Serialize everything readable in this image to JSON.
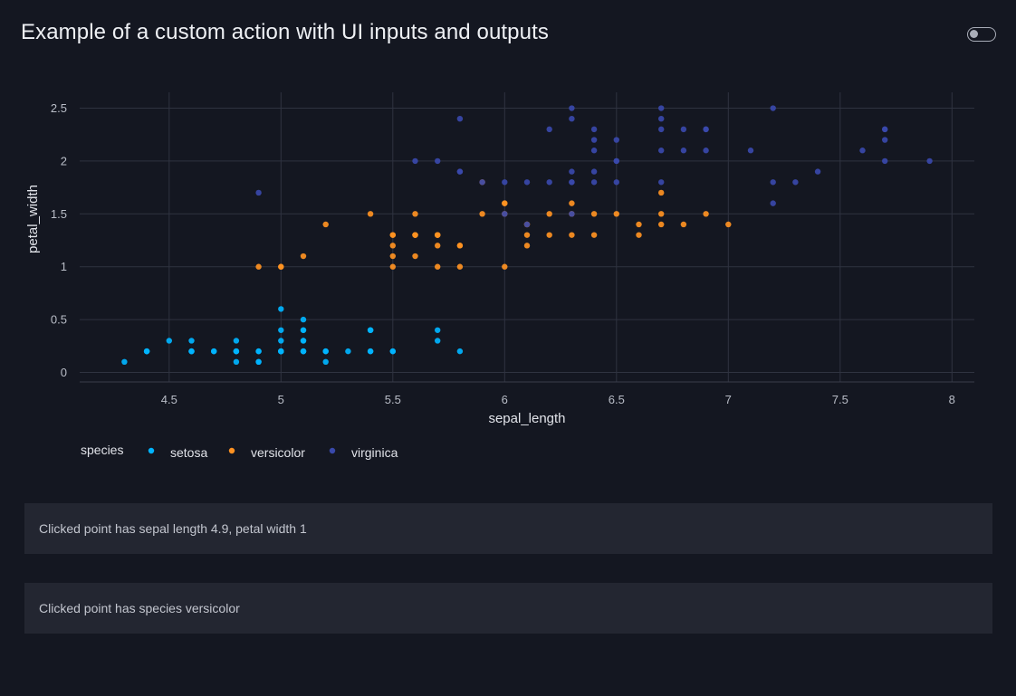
{
  "header": {
    "title": "Example of a custom action with UI inputs and outputs"
  },
  "colors": {
    "setosa": "#00b4ff",
    "versicolor": "#ff9222",
    "virginica": "#3949ab"
  },
  "outputs": [
    {
      "text": "Clicked point has sepal length 4.9, petal width 1"
    },
    {
      "text": "Clicked point has species versicolor"
    }
  ],
  "chart_data": {
    "type": "scatter",
    "xlabel": "sepal_length",
    "ylabel": "petal_width",
    "xlim": [
      4.1,
      8.1
    ],
    "ylim": [
      -0.09,
      2.65
    ],
    "x_ticks": [
      4.5,
      5,
      5.5,
      6,
      6.5,
      7,
      7.5,
      8
    ],
    "y_ticks": [
      0,
      0.5,
      1,
      1.5,
      2,
      2.5
    ],
    "x_tick_labels": [
      "4.5",
      "5",
      "5.5",
      "6",
      "6.5",
      "7",
      "7.5",
      "8"
    ],
    "y_tick_labels": [
      "0",
      "0.5",
      "1",
      "1.5",
      "2",
      "2.5"
    ],
    "grid": true,
    "legend": {
      "title": "species",
      "position": "bottom-left",
      "orientation": "horizontal"
    },
    "series": [
      {
        "name": "setosa",
        "points": [
          [
            5.1,
            0.2
          ],
          [
            4.9,
            0.2
          ],
          [
            4.7,
            0.2
          ],
          [
            4.6,
            0.2
          ],
          [
            5.0,
            0.2
          ],
          [
            5.4,
            0.4
          ],
          [
            4.6,
            0.3
          ],
          [
            5.0,
            0.2
          ],
          [
            4.4,
            0.2
          ],
          [
            4.9,
            0.1
          ],
          [
            5.4,
            0.2
          ],
          [
            4.8,
            0.2
          ],
          [
            4.8,
            0.1
          ],
          [
            4.3,
            0.1
          ],
          [
            5.8,
            0.2
          ],
          [
            5.7,
            0.4
          ],
          [
            5.4,
            0.4
          ],
          [
            5.1,
            0.3
          ],
          [
            5.7,
            0.3
          ],
          [
            5.1,
            0.3
          ],
          [
            5.4,
            0.2
          ],
          [
            5.1,
            0.4
          ],
          [
            4.6,
            0.2
          ],
          [
            5.1,
            0.5
          ],
          [
            4.8,
            0.2
          ],
          [
            5.0,
            0.2
          ],
          [
            5.0,
            0.4
          ],
          [
            5.2,
            0.2
          ],
          [
            5.2,
            0.2
          ],
          [
            4.7,
            0.2
          ],
          [
            4.8,
            0.2
          ],
          [
            5.4,
            0.4
          ],
          [
            5.2,
            0.1
          ],
          [
            5.5,
            0.2
          ],
          [
            4.9,
            0.2
          ],
          [
            5.0,
            0.2
          ],
          [
            5.5,
            0.2
          ],
          [
            4.9,
            0.1
          ],
          [
            4.4,
            0.2
          ],
          [
            5.1,
            0.2
          ],
          [
            5.0,
            0.3
          ],
          [
            4.5,
            0.3
          ],
          [
            4.4,
            0.2
          ],
          [
            5.0,
            0.6
          ],
          [
            5.1,
            0.4
          ],
          [
            4.8,
            0.3
          ],
          [
            5.1,
            0.2
          ],
          [
            4.6,
            0.2
          ],
          [
            5.3,
            0.2
          ],
          [
            5.0,
            0.2
          ]
        ]
      },
      {
        "name": "versicolor",
        "points": [
          [
            7.0,
            1.4
          ],
          [
            6.4,
            1.5
          ],
          [
            6.9,
            1.5
          ],
          [
            5.5,
            1.3
          ],
          [
            6.5,
            1.5
          ],
          [
            5.7,
            1.3
          ],
          [
            6.3,
            1.6
          ],
          [
            4.9,
            1.0
          ],
          [
            6.6,
            1.3
          ],
          [
            5.2,
            1.4
          ],
          [
            5.0,
            1.0
          ],
          [
            5.9,
            1.5
          ],
          [
            6.0,
            1.0
          ],
          [
            6.1,
            1.4
          ],
          [
            5.6,
            1.3
          ],
          [
            6.7,
            1.4
          ],
          [
            5.6,
            1.5
          ],
          [
            5.8,
            1.0
          ],
          [
            6.2,
            1.5
          ],
          [
            5.6,
            1.1
          ],
          [
            5.9,
            1.8
          ],
          [
            6.1,
            1.3
          ],
          [
            6.3,
            1.5
          ],
          [
            6.1,
            1.2
          ],
          [
            6.4,
            1.3
          ],
          [
            6.6,
            1.4
          ],
          [
            6.8,
            1.4
          ],
          [
            6.7,
            1.7
          ],
          [
            6.0,
            1.5
          ],
          [
            5.7,
            1.0
          ],
          [
            5.5,
            1.1
          ],
          [
            5.5,
            1.0
          ],
          [
            5.8,
            1.2
          ],
          [
            6.0,
            1.6
          ],
          [
            5.4,
            1.5
          ],
          [
            6.0,
            1.6
          ],
          [
            6.7,
            1.5
          ],
          [
            6.3,
            1.3
          ],
          [
            5.6,
            1.3
          ],
          [
            5.5,
            1.3
          ],
          [
            5.5,
            1.2
          ],
          [
            6.1,
            1.4
          ],
          [
            5.8,
            1.2
          ],
          [
            5.0,
            1.0
          ],
          [
            5.6,
            1.3
          ],
          [
            5.7,
            1.2
          ],
          [
            5.7,
            1.3
          ],
          [
            6.2,
            1.3
          ],
          [
            5.1,
            1.1
          ],
          [
            5.7,
            1.3
          ]
        ]
      },
      {
        "name": "virginica",
        "points": [
          [
            6.3,
            2.5
          ],
          [
            5.8,
            1.9
          ],
          [
            7.1,
            2.1
          ],
          [
            6.3,
            1.8
          ],
          [
            6.5,
            2.2
          ],
          [
            7.6,
            2.1
          ],
          [
            4.9,
            1.7
          ],
          [
            7.3,
            1.8
          ],
          [
            6.7,
            1.8
          ],
          [
            7.2,
            2.5
          ],
          [
            6.5,
            2.0
          ],
          [
            6.4,
            1.9
          ],
          [
            6.8,
            2.1
          ],
          [
            5.7,
            2.0
          ],
          [
            5.8,
            2.4
          ],
          [
            6.4,
            2.3
          ],
          [
            6.5,
            1.8
          ],
          [
            7.7,
            2.2
          ],
          [
            7.7,
            2.3
          ],
          [
            6.0,
            1.5
          ],
          [
            6.9,
            2.3
          ],
          [
            5.6,
            2.0
          ],
          [
            7.7,
            2.0
          ],
          [
            6.3,
            1.8
          ],
          [
            6.7,
            2.1
          ],
          [
            7.2,
            1.8
          ],
          [
            6.2,
            1.8
          ],
          [
            6.1,
            1.8
          ],
          [
            6.4,
            2.1
          ],
          [
            7.2,
            1.6
          ],
          [
            7.4,
            1.9
          ],
          [
            7.9,
            2.0
          ],
          [
            6.4,
            2.2
          ],
          [
            6.3,
            1.5
          ],
          [
            6.1,
            1.4
          ],
          [
            7.7,
            2.3
          ],
          [
            6.3,
            2.4
          ],
          [
            6.4,
            1.8
          ],
          [
            6.0,
            1.8
          ],
          [
            6.9,
            2.1
          ],
          [
            6.7,
            2.4
          ],
          [
            6.9,
            2.3
          ],
          [
            5.8,
            1.9
          ],
          [
            6.8,
            2.3
          ],
          [
            6.7,
            2.5
          ],
          [
            6.7,
            2.3
          ],
          [
            6.3,
            1.9
          ],
          [
            6.5,
            2.0
          ],
          [
            6.2,
            2.3
          ],
          [
            5.9,
            1.8
          ]
        ]
      }
    ]
  }
}
